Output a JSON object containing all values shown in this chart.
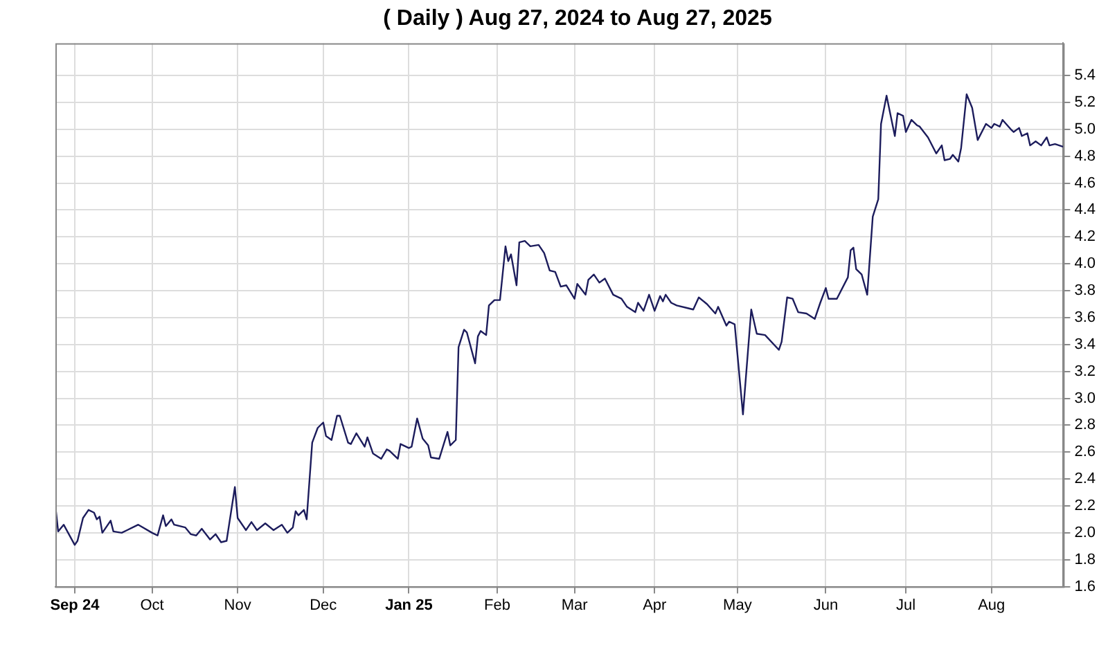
{
  "chart_data": {
    "type": "line",
    "title": "( Daily ) Aug 27, 2024 to Aug 27, 2025",
    "x": [
      "2024-08-27",
      "2024-08-28",
      "2024-08-30",
      "2024-09-03",
      "2024-09-04",
      "2024-09-06",
      "2024-09-08",
      "2024-09-10",
      "2024-09-11",
      "2024-09-12",
      "2024-09-13",
      "2024-09-16",
      "2024-09-17",
      "2024-09-20",
      "2024-09-22",
      "2024-09-26",
      "2024-10-01",
      "2024-10-03",
      "2024-10-05",
      "2024-10-06",
      "2024-10-08",
      "2024-10-09",
      "2024-10-13",
      "2024-10-15",
      "2024-10-17",
      "2024-10-19",
      "2024-10-22",
      "2024-10-24",
      "2024-10-26",
      "2024-10-28",
      "2024-10-31",
      "2024-11-01",
      "2024-11-04",
      "2024-11-06",
      "2024-11-08",
      "2024-11-11",
      "2024-11-14",
      "2024-11-17",
      "2024-11-19",
      "2024-11-21",
      "2024-11-22",
      "2024-11-23",
      "2024-11-25",
      "2024-11-26",
      "2024-11-28",
      "2024-11-30",
      "2024-12-02",
      "2024-12-03",
      "2024-12-05",
      "2024-12-07",
      "2024-12-08",
      "2024-12-11",
      "2024-12-12",
      "2024-12-14",
      "2024-12-17",
      "2024-12-18",
      "2024-12-20",
      "2024-12-23",
      "2024-12-25",
      "2024-12-26",
      "2024-12-29",
      "2024-12-30",
      "2025-01-02",
      "2025-01-03",
      "2025-01-05",
      "2025-01-07",
      "2025-01-09",
      "2025-01-10",
      "2025-01-13",
      "2025-01-16",
      "2025-01-17",
      "2025-01-19",
      "2025-01-20",
      "2025-01-22",
      "2025-01-23",
      "2025-01-26",
      "2025-01-27",
      "2025-01-28",
      "2025-01-30",
      "2025-01-31",
      "2025-02-02",
      "2025-02-04",
      "2025-02-06",
      "2025-02-07",
      "2025-02-08",
      "2025-02-10",
      "2025-02-11",
      "2025-02-13",
      "2025-02-15",
      "2025-02-18",
      "2025-02-20",
      "2025-02-22",
      "2025-02-24",
      "2025-02-26",
      "2025-02-28",
      "2025-03-03",
      "2025-03-04",
      "2025-03-07",
      "2025-03-08",
      "2025-03-10",
      "2025-03-12",
      "2025-03-14",
      "2025-03-17",
      "2025-03-20",
      "2025-03-22",
      "2025-03-25",
      "2025-03-26",
      "2025-03-28",
      "2025-03-30",
      "2025-04-01",
      "2025-04-03",
      "2025-04-04",
      "2025-04-05",
      "2025-04-07",
      "2025-04-09",
      "2025-04-13",
      "2025-04-15",
      "2025-04-17",
      "2025-04-20",
      "2025-04-23",
      "2025-04-24",
      "2025-04-27",
      "2025-04-28",
      "2025-04-30",
      "2025-05-03",
      "2025-05-06",
      "2025-05-08",
      "2025-05-11",
      "2025-05-16",
      "2025-05-17",
      "2025-05-19",
      "2025-05-21",
      "2025-05-23",
      "2025-05-26",
      "2025-05-29",
      "2025-05-31",
      "2025-06-02",
      "2025-06-03",
      "2025-06-06",
      "2025-06-10",
      "2025-06-11",
      "2025-06-12",
      "2025-06-13",
      "2025-06-15",
      "2025-06-17",
      "2025-06-19",
      "2025-06-21",
      "2025-06-22",
      "2025-06-24",
      "2025-06-25",
      "2025-06-27",
      "2025-06-28",
      "2025-06-30",
      "2025-07-01",
      "2025-07-03",
      "2025-07-05",
      "2025-07-06",
      "2025-07-09",
      "2025-07-12",
      "2025-07-14",
      "2025-07-15",
      "2025-07-17",
      "2025-07-18",
      "2025-07-20",
      "2025-07-21",
      "2025-07-23",
      "2025-07-25",
      "2025-07-27",
      "2025-07-30",
      "2025-08-01",
      "2025-08-02",
      "2025-08-04",
      "2025-08-05",
      "2025-08-08",
      "2025-08-09",
      "2025-08-11",
      "2025-08-12",
      "2025-08-14",
      "2025-08-15",
      "2025-08-17",
      "2025-08-19",
      "2025-08-21",
      "2025-08-22",
      "2025-08-24",
      "2025-08-27"
    ],
    "series": [
      {
        "color": "#1c1c5c",
        "values": [
          2.2,
          2.01,
          2.06,
          1.91,
          1.94,
          2.11,
          2.17,
          2.15,
          2.1,
          2.12,
          2.0,
          2.09,
          2.01,
          2.0,
          2.02,
          2.06,
          2.0,
          1.98,
          2.13,
          2.05,
          2.1,
          2.06,
          2.04,
          1.99,
          1.98,
          2.03,
          1.95,
          1.99,
          1.93,
          1.94,
          2.34,
          2.11,
          2.02,
          2.08,
          2.02,
          2.07,
          2.02,
          2.06,
          2.0,
          2.04,
          2.16,
          2.13,
          2.17,
          2.1,
          2.67,
          2.78,
          2.82,
          2.72,
          2.69,
          2.87,
          2.87,
          2.67,
          2.66,
          2.74,
          2.64,
          2.71,
          2.59,
          2.55,
          2.62,
          2.61,
          2.55,
          2.66,
          2.63,
          2.64,
          2.85,
          2.7,
          2.65,
          2.56,
          2.55,
          2.75,
          2.65,
          2.69,
          3.38,
          3.51,
          3.49,
          3.26,
          3.46,
          3.5,
          3.47,
          3.69,
          3.73,
          3.73,
          4.13,
          4.02,
          4.07,
          3.84,
          4.16,
          4.17,
          4.13,
          4.14,
          4.08,
          3.95,
          3.94,
          3.83,
          3.84,
          3.74,
          3.85,
          3.77,
          3.88,
          3.92,
          3.86,
          3.89,
          3.77,
          3.74,
          3.68,
          3.64,
          3.71,
          3.65,
          3.77,
          3.65,
          3.76,
          3.72,
          3.77,
          3.71,
          3.69,
          3.67,
          3.66,
          3.75,
          3.7,
          3.63,
          3.68,
          3.54,
          3.57,
          3.55,
          2.88,
          3.66,
          3.48,
          3.47,
          3.36,
          3.42,
          3.75,
          3.74,
          3.64,
          3.63,
          3.59,
          3.71,
          3.82,
          3.74,
          3.74,
          3.9,
          4.1,
          4.12,
          3.96,
          3.92,
          3.77,
          4.35,
          4.48,
          5.04,
          5.25,
          5.15,
          4.95,
          5.12,
          5.1,
          4.98,
          5.07,
          5.03,
          5.02,
          4.94,
          4.82,
          4.88,
          4.77,
          4.78,
          4.81,
          4.76,
          4.86,
          5.26,
          5.16,
          4.92,
          5.04,
          5.01,
          5.04,
          5.02,
          5.07,
          5.0,
          4.98,
          5.01,
          4.95,
          4.97,
          4.88,
          4.91,
          4.88,
          4.94,
          4.88,
          4.89,
          4.87
        ]
      }
    ],
    "xlim": [
      "2024-08-27",
      "2025-08-27"
    ],
    "xticks": [
      {
        "value": "2024-09-03",
        "label": "Sep 24"
      },
      {
        "value": "2024-10-01",
        "label": "Oct"
      },
      {
        "value": "2024-11-01",
        "label": "Nov"
      },
      {
        "value": "2024-12-02",
        "label": "Dec"
      },
      {
        "value": "2025-01-02",
        "label": "Jan 25"
      },
      {
        "value": "2025-02-03",
        "label": "Feb"
      },
      {
        "value": "2025-03-03",
        "label": "Mar"
      },
      {
        "value": "2025-04-01",
        "label": "Apr"
      },
      {
        "value": "2025-05-01",
        "label": "May"
      },
      {
        "value": "2025-06-02",
        "label": "Jun"
      },
      {
        "value": "2025-07-01",
        "label": "Jul"
      },
      {
        "value": "2025-08-01",
        "label": "Aug"
      }
    ],
    "ylim": [
      1.6,
      5.64
    ],
    "yticks": [
      {
        "value": 1.6,
        "label": "1.6"
      },
      {
        "value": 1.8,
        "label": "1.8"
      },
      {
        "value": 2.0,
        "label": "2.0"
      },
      {
        "value": 2.2,
        "label": "2.2"
      },
      {
        "value": 2.4,
        "label": "2.4"
      },
      {
        "value": 2.6,
        "label": "2.6"
      },
      {
        "value": 2.8,
        "label": "2.8"
      },
      {
        "value": 3.0,
        "label": "3.0"
      },
      {
        "value": 3.2,
        "label": "3.2"
      },
      {
        "value": 3.4,
        "label": "3.4"
      },
      {
        "value": 3.6,
        "label": "3.6"
      },
      {
        "value": 3.8,
        "label": "3.8"
      },
      {
        "value": 4.0,
        "label": "4.0"
      },
      {
        "value": 4.2,
        "label": "4.2"
      },
      {
        "value": 4.4,
        "label": "4.4"
      },
      {
        "value": 4.6,
        "label": "4.6"
      },
      {
        "value": 4.8,
        "label": "4.8"
      },
      {
        "value": 5.0,
        "label": "5.0"
      },
      {
        "value": 5.2,
        "label": "5.2"
      },
      {
        "value": 5.4,
        "label": "5.4"
      }
    ],
    "grid": true
  }
}
